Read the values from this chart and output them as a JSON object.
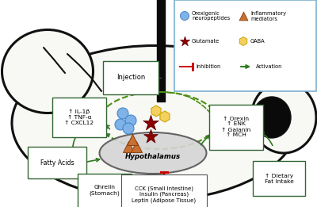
{
  "background": "#ffffff",
  "brain_fill": "#f8f8f5",
  "brain_edge": "#111111",
  "hypo_fill": "#d5d5d5",
  "hypo_edge": "#555555",
  "gc": "#2d7a1e",
  "rc": "#cc0000",
  "dgc": "#4a9010",
  "orex_color": "#7fb3e8",
  "orex_edge": "#4488cc",
  "infla_color": "#c87030",
  "infla_edge": "#8b4010",
  "glut_color": "#8b0000",
  "gaba_color": "#f5d060",
  "gaba_edge": "#c8a800",
  "legend_edge": "#7ab0d0",
  "label_inj": "Injection",
  "label_il": "↑ IL-1β\n↑ TNF-α\n↑ CXCL12",
  "label_fa": "Fatty Acids",
  "label_gh": "Ghrelin\n(Stomach)",
  "label_cck": "CCK (Small Intestine)\nInsulin (Pancreas)\nLeptin (Adipose Tissue)",
  "label_orex": "↑ Orexin\n↑ ENK\n↑ Galanin\n↑ MCH",
  "label_hypo": "Hypothalamus",
  "label_diet": "↑ Dietary\nFat Intake",
  "leg_orex": "Orexigenic\nneuropeptides",
  "leg_infla": "Inflammatory\nmediators",
  "leg_glut": "Glutamate",
  "leg_gaba": "GABA",
  "leg_inhib": "Inhibition",
  "leg_activ": "Activation"
}
